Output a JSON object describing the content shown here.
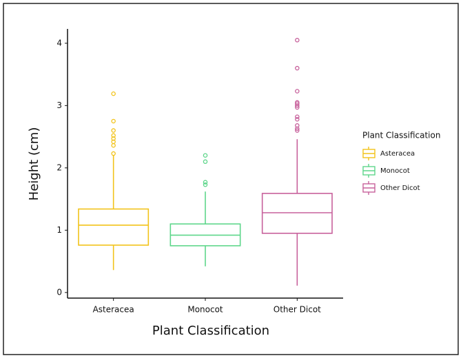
{
  "chart_data": {
    "type": "box",
    "x_label": "Plant Classification",
    "y_label": "Height (cm)",
    "legend_title": "Plant Classification",
    "legend_position": "right",
    "categories": [
      "Asteracea",
      "Monocot",
      "Other Dicot"
    ],
    "boxes": [
      {
        "color": "#f2c31a",
        "min": 0.36,
        "q1": 0.76,
        "median": 1.08,
        "q3": 1.34,
        "max": 2.2,
        "outliers": [
          3.19,
          2.75,
          2.6,
          2.52,
          2.47,
          2.42,
          2.36,
          2.23
        ]
      },
      {
        "color": "#5dd68a",
        "min": 0.42,
        "q1": 0.75,
        "median": 0.92,
        "q3": 1.1,
        "max": 1.62,
        "outliers": [
          1.73,
          1.77,
          2.1,
          2.2
        ]
      },
      {
        "color": "#c7609b",
        "min": 0.11,
        "q1": 0.95,
        "median": 1.28,
        "q3": 1.59,
        "max": 2.46,
        "outliers": [
          2.6,
          2.63,
          2.68,
          2.78,
          2.82,
          2.97,
          3.0,
          3.03,
          3.05,
          3.23,
          3.6,
          4.05
        ]
      }
    ],
    "ylim": [
      -0.09,
      4.23
    ],
    "yticks": [
      0,
      1,
      2,
      3,
      4
    ]
  }
}
